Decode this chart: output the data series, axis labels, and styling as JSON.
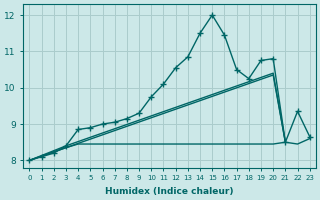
{
  "xlabel": "Humidex (Indice chaleur)",
  "ylabel": "",
  "background_color": "#cce8e8",
  "grid_color": "#aacccc",
  "line_color": "#006666",
  "xlim": [
    -0.5,
    23.5
  ],
  "ylim": [
    7.8,
    12.3
  ],
  "xticks": [
    0,
    1,
    2,
    3,
    4,
    5,
    6,
    7,
    8,
    9,
    10,
    11,
    12,
    13,
    14,
    15,
    16,
    17,
    18,
    19,
    20,
    21,
    22,
    23
  ],
  "yticks": [
    8,
    9,
    10,
    11,
    12
  ],
  "lines": [
    {
      "x": [
        0,
        1,
        2,
        3,
        4,
        5,
        6,
        7,
        8,
        9,
        10,
        11,
        12,
        13,
        14,
        15,
        16,
        17,
        18,
        19,
        20,
        21,
        22,
        23
      ],
      "y": [
        8.0,
        8.1,
        8.2,
        8.4,
        8.85,
        8.9,
        9.0,
        9.05,
        9.15,
        9.3,
        9.75,
        10.1,
        10.55,
        10.85,
        11.5,
        12.0,
        11.45,
        10.5,
        10.25,
        10.75,
        10.8,
        8.5,
        9.35,
        8.65
      ],
      "marker": "+",
      "markersize": 4,
      "linewidth": 1.0,
      "linestyle": "-"
    },
    {
      "x": [
        0,
        3,
        20,
        21
      ],
      "y": [
        8.0,
        8.4,
        10.4,
        8.5
      ],
      "marker": null,
      "markersize": 0,
      "linewidth": 1.0,
      "linestyle": "-"
    },
    {
      "x": [
        0,
        3,
        20,
        21
      ],
      "y": [
        8.0,
        8.35,
        10.35,
        8.5
      ],
      "marker": null,
      "markersize": 0,
      "linewidth": 1.0,
      "linestyle": "-"
    },
    {
      "x": [
        0,
        3,
        4,
        20,
        21,
        22,
        23
      ],
      "y": [
        8.0,
        8.35,
        8.45,
        8.45,
        8.5,
        8.45,
        8.6
      ],
      "marker": null,
      "markersize": 0,
      "linewidth": 1.0,
      "linestyle": "-"
    }
  ]
}
